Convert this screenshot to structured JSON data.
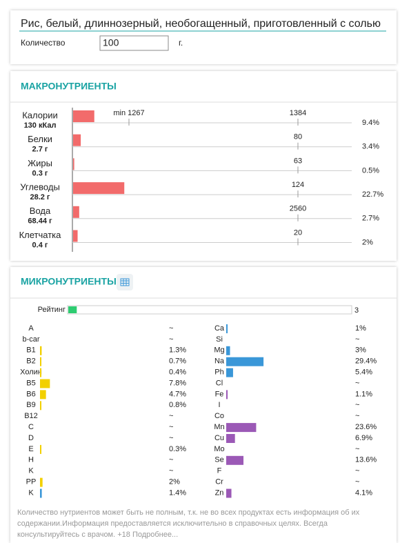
{
  "header": {
    "title": "Рис, белый, длиннозерный, необогащенный, приготовленный с солью",
    "quantity_label": "Количество",
    "quantity": "100",
    "unit": "г."
  },
  "macros": {
    "title": "МАКРОНУТРИЕНТЫ",
    "min": {
      "value": 1267,
      "label": "min 1267"
    },
    "items": [
      {
        "name": "Калории",
        "amount": "130 кКал",
        "norm": 1384,
        "percent": {
          "value": 9.4,
          "label": "9.4%"
        }
      },
      {
        "name": "Белки",
        "amount": "2.7 г",
        "norm": 80,
        "percent": {
          "value": 3.4,
          "label": "3.4%"
        }
      },
      {
        "name": "Жиры",
        "amount": "0.3 г",
        "norm": 63,
        "percent": {
          "value": 0.5,
          "label": "0.5%"
        }
      },
      {
        "name": "Углеводы",
        "amount": "28.2 г",
        "norm": 124,
        "percent": {
          "value": 22.7,
          "label": "22.7%"
        }
      },
      {
        "name": "Вода",
        "amount": "68.44 г",
        "norm": 2560,
        "percent": {
          "value": 2.7,
          "label": "2.7%"
        }
      },
      {
        "name": "Клетчатка",
        "amount": "0.4 г",
        "norm": 20,
        "percent": {
          "value": 2,
          "label": "2%"
        }
      }
    ]
  },
  "micros": {
    "title": "МИКРОНУТРИЕНТЫ",
    "rating_label": "Рейтинг",
    "rating": 3,
    "left": [
      {
        "name": "A",
        "percent": "~"
      },
      {
        "name": "b-car",
        "percent": "~"
      },
      {
        "name": "B1",
        "percent": {
          "value": 1.3,
          "label": "1.3%"
        },
        "color": "#f2d000"
      },
      {
        "name": "B2",
        "percent": {
          "value": 0.7,
          "label": "0.7%"
        },
        "color": "#f2d000"
      },
      {
        "name": "Холин",
        "percent": {
          "value": 0.4,
          "label": "0.4%"
        },
        "color": "#f2d000"
      },
      {
        "name": "B5",
        "percent": {
          "value": 7.8,
          "label": "7.8%"
        },
        "color": "#f2d000"
      },
      {
        "name": "B6",
        "percent": {
          "value": 4.7,
          "label": "4.7%"
        },
        "color": "#f2d000"
      },
      {
        "name": "B9",
        "percent": {
          "value": 0.8,
          "label": "0.8%"
        },
        "color": "#f2d000"
      },
      {
        "name": "B12",
        "percent": "~"
      },
      {
        "name": "C",
        "percent": "~"
      },
      {
        "name": "D",
        "percent": "~"
      },
      {
        "name": "E",
        "percent": {
          "value": 0.3,
          "label": "0.3%"
        },
        "color": "#f2d000"
      },
      {
        "name": "H",
        "percent": "~"
      },
      {
        "name": "K",
        "percent": "~"
      },
      {
        "name": "PP",
        "percent": {
          "value": 2,
          "label": "2%"
        },
        "color": "#f2d000"
      },
      {
        "name": "K",
        "percent": {
          "value": 1.4,
          "label": "1.4%"
        },
        "color": "#3a97d8"
      }
    ],
    "right": [
      {
        "name": "Ca",
        "percent": {
          "value": 1,
          "label": "1%"
        },
        "color": "#3a97d8"
      },
      {
        "name": "Si",
        "percent": "~"
      },
      {
        "name": "Mg",
        "percent": {
          "value": 3,
          "label": "3%"
        },
        "color": "#3a97d8"
      },
      {
        "name": "Na",
        "percent": {
          "value": 29.4,
          "label": "29.4%"
        },
        "color": "#3a97d8"
      },
      {
        "name": "Ph",
        "percent": {
          "value": 5.4,
          "label": "5.4%"
        },
        "color": "#3a97d8"
      },
      {
        "name": "Cl",
        "percent": "~"
      },
      {
        "name": "Fe",
        "percent": {
          "value": 1.1,
          "label": "1.1%"
        },
        "color": "#9b59b6"
      },
      {
        "name": "I",
        "percent": "~"
      },
      {
        "name": "Co",
        "percent": "~"
      },
      {
        "name": "Mn",
        "percent": {
          "value": 23.6,
          "label": "23.6%"
        },
        "color": "#9b59b6"
      },
      {
        "name": "Cu",
        "percent": {
          "value": 6.9,
          "label": "6.9%"
        },
        "color": "#9b59b6"
      },
      {
        "name": "Mo",
        "percent": "~"
      },
      {
        "name": "Se",
        "percent": {
          "value": 13.6,
          "label": "13.6%"
        },
        "color": "#9b59b6"
      },
      {
        "name": "F",
        "percent": "~"
      },
      {
        "name": "Cr",
        "percent": "~"
      },
      {
        "name": "Zn",
        "percent": {
          "value": 4.1,
          "label": "4.1%"
        },
        "color": "#9b59b6"
      }
    ]
  },
  "footer": "Количество нутриентов может быть не полным, т.к. не во всех продуктах есть информация об их содержании.Информация предоставляется исключительно в справочных целях. Всегда консультируйтесь с врачом. +18 Подробнее..."
}
